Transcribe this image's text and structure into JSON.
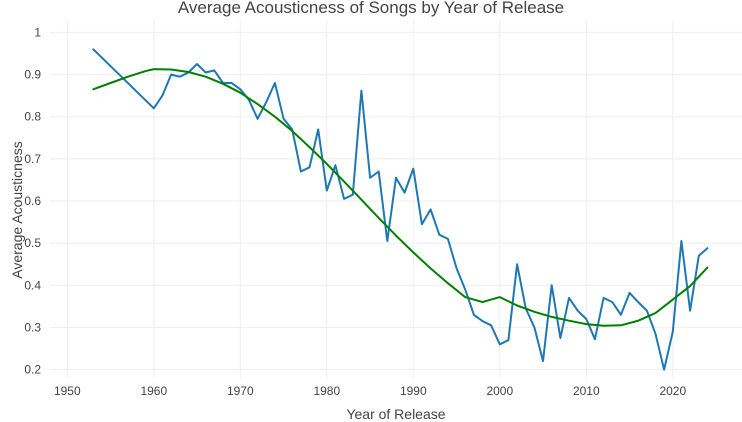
{
  "chart_data": {
    "type": "line",
    "title": "Average Acousticness of Songs by Year of Release",
    "xlabel": "Year of Release",
    "ylabel": "Average Acousticness",
    "xlim": [
      1948,
      2028
    ],
    "ylim": [
      0.18,
      1.02
    ],
    "xticks": [
      1950,
      1960,
      1970,
      1980,
      1990,
      2000,
      2010,
      2020
    ],
    "yticks": [
      0.2,
      0.3,
      0.4,
      0.5,
      0.6,
      0.7,
      0.8,
      0.9,
      1
    ],
    "grid": true,
    "legend": "none",
    "series": [
      {
        "color": "#1f77b4",
        "x": [
          1953,
          1960,
          1961,
          1962,
          1963,
          1964,
          1965,
          1966,
          1967,
          1968,
          1969,
          1970,
          1971,
          1972,
          1973,
          1974,
          1975,
          1976,
          1977,
          1978,
          1979,
          1980,
          1981,
          1982,
          1983,
          1984,
          1985,
          1986,
          1987,
          1988,
          1989,
          1990,
          1991,
          1992,
          1993,
          1994,
          1995,
          1996,
          1997,
          1998,
          1999,
          2000,
          2001,
          2002,
          2003,
          2004,
          2005,
          2006,
          2007,
          2008,
          2009,
          2010,
          2011,
          2012,
          2013,
          2014,
          2015,
          2016,
          2017,
          2018,
          2019,
          2020,
          2021,
          2022,
          2023,
          2024
        ],
        "y": [
          0.96,
          0.82,
          0.85,
          0.9,
          0.895,
          0.905,
          0.925,
          0.905,
          0.91,
          0.88,
          0.88,
          0.865,
          0.84,
          0.795,
          0.835,
          0.88,
          0.795,
          0.77,
          0.67,
          0.68,
          0.77,
          0.625,
          0.685,
          0.605,
          0.615,
          0.862,
          0.655,
          0.67,
          0.505,
          0.655,
          0.62,
          0.677,
          0.545,
          0.58,
          0.52,
          0.51,
          0.44,
          0.39,
          0.33,
          0.315,
          0.305,
          0.26,
          0.27,
          0.45,
          0.345,
          0.3,
          0.22,
          0.4,
          0.275,
          0.37,
          0.34,
          0.32,
          0.272,
          0.37,
          0.36,
          0.33,
          0.382,
          0.36,
          0.34,
          0.285,
          0.2,
          0.29,
          0.505,
          0.34,
          0.47,
          0.488
        ]
      },
      {
        "color": "#008000",
        "x": [
          1953,
          1955,
          1957,
          1959,
          1960,
          1962,
          1964,
          1966,
          1968,
          1970,
          1972,
          1974,
          1976,
          1978,
          1980,
          1982,
          1984,
          1986,
          1988,
          1990,
          1992,
          1994,
          1996,
          1998,
          2000,
          2002,
          2004,
          2006,
          2008,
          2010,
          2012,
          2014,
          2016,
          2018,
          2020,
          2022,
          2024
        ],
        "y": [
          0.865,
          0.88,
          0.895,
          0.908,
          0.913,
          0.912,
          0.906,
          0.895,
          0.878,
          0.857,
          0.83,
          0.8,
          0.766,
          0.728,
          0.688,
          0.646,
          0.603,
          0.56,
          0.518,
          0.478,
          0.44,
          0.405,
          0.372,
          0.36,
          0.372,
          0.352,
          0.337,
          0.325,
          0.316,
          0.308,
          0.304,
          0.305,
          0.316,
          0.334,
          0.366,
          0.398,
          0.442
        ]
      }
    ]
  }
}
